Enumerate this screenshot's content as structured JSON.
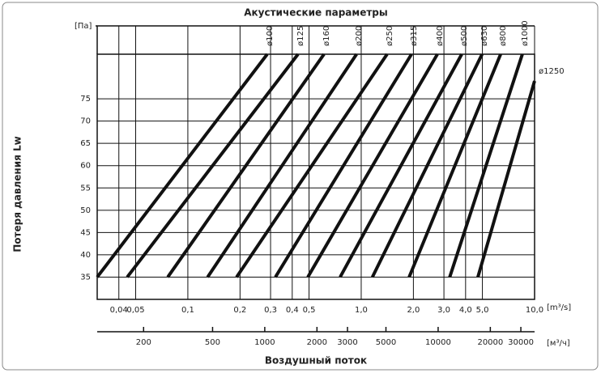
{
  "chart_data": {
    "type": "line",
    "title": "Акустические параметры",
    "y_label": "Потеря давления Lw",
    "x_label": "Воздушный поток",
    "y_unit": "[Па]",
    "x_unit": "[m³/s]",
    "x2_unit": "[м³/ч]",
    "log_x": true,
    "grid": true,
    "color": "#111111",
    "xlim": [
      0.03,
      10
    ],
    "xticks": [
      {
        "value": 0.04,
        "label": "0,04"
      },
      {
        "value": 0.05,
        "label": "0,05"
      },
      {
        "value": 0.1,
        "label": "0,1"
      },
      {
        "value": 0.2,
        "label": "0,2"
      },
      {
        "value": 0.3,
        "label": "0,3"
      },
      {
        "value": 0.4,
        "label": "0,4"
      },
      {
        "value": 0.5,
        "label": "0,5"
      },
      {
        "value": 1.0,
        "label": "1,0"
      },
      {
        "value": 2.0,
        "label": "2,0"
      },
      {
        "value": 3.0,
        "label": "3,0"
      },
      {
        "value": 4.0,
        "label": "4,0"
      },
      {
        "value": 5.0,
        "label": "5,0"
      },
      {
        "value": 10.0,
        "label": "10,0"
      }
    ],
    "x2lim": [
      108,
      36000
    ],
    "x2ticks": [
      200,
      500,
      1000,
      2000,
      3000,
      5000,
      10000,
      20000,
      30000
    ],
    "ylim": [
      30,
      85
    ],
    "yticks": [
      35,
      40,
      45,
      50,
      55,
      60,
      65,
      70,
      75
    ],
    "series": [
      {
        "name": "ø100",
        "x": [
          0.03,
          0.287
        ],
        "values": [
          35,
          85
        ]
      },
      {
        "name": "ø125",
        "x": [
          0.0447,
          0.432
        ],
        "values": [
          35,
          85
        ]
      },
      {
        "name": "ø160",
        "x": [
          0.0766,
          0.61
        ],
        "values": [
          35,
          85
        ]
      },
      {
        "name": "ø200",
        "x": [
          0.13,
          0.94
        ],
        "values": [
          35,
          85
        ]
      },
      {
        "name": "ø250",
        "x": [
          0.191,
          1.41
        ],
        "values": [
          35,
          85
        ]
      },
      {
        "name": "ø315",
        "x": [
          0.32,
          1.95
        ],
        "values": [
          35,
          85
        ]
      },
      {
        "name": "ø400",
        "x": [
          0.492,
          2.75
        ],
        "values": [
          35,
          85
        ]
      },
      {
        "name": "ø500",
        "x": [
          0.756,
          3.8
        ],
        "values": [
          35,
          85
        ]
      },
      {
        "name": "ø630",
        "x": [
          1.16,
          4.98
        ],
        "values": [
          35,
          85
        ]
      },
      {
        "name": "ø800",
        "x": [
          1.89,
          6.37
        ],
        "values": [
          35,
          85
        ]
      },
      {
        "name": "ø1000",
        "x": [
          3.24,
          8.5
        ],
        "values": [
          35,
          85
        ]
      },
      {
        "name": "ø1250",
        "x": [
          4.71,
          10
        ],
        "values": [
          35,
          79
        ]
      }
    ]
  }
}
